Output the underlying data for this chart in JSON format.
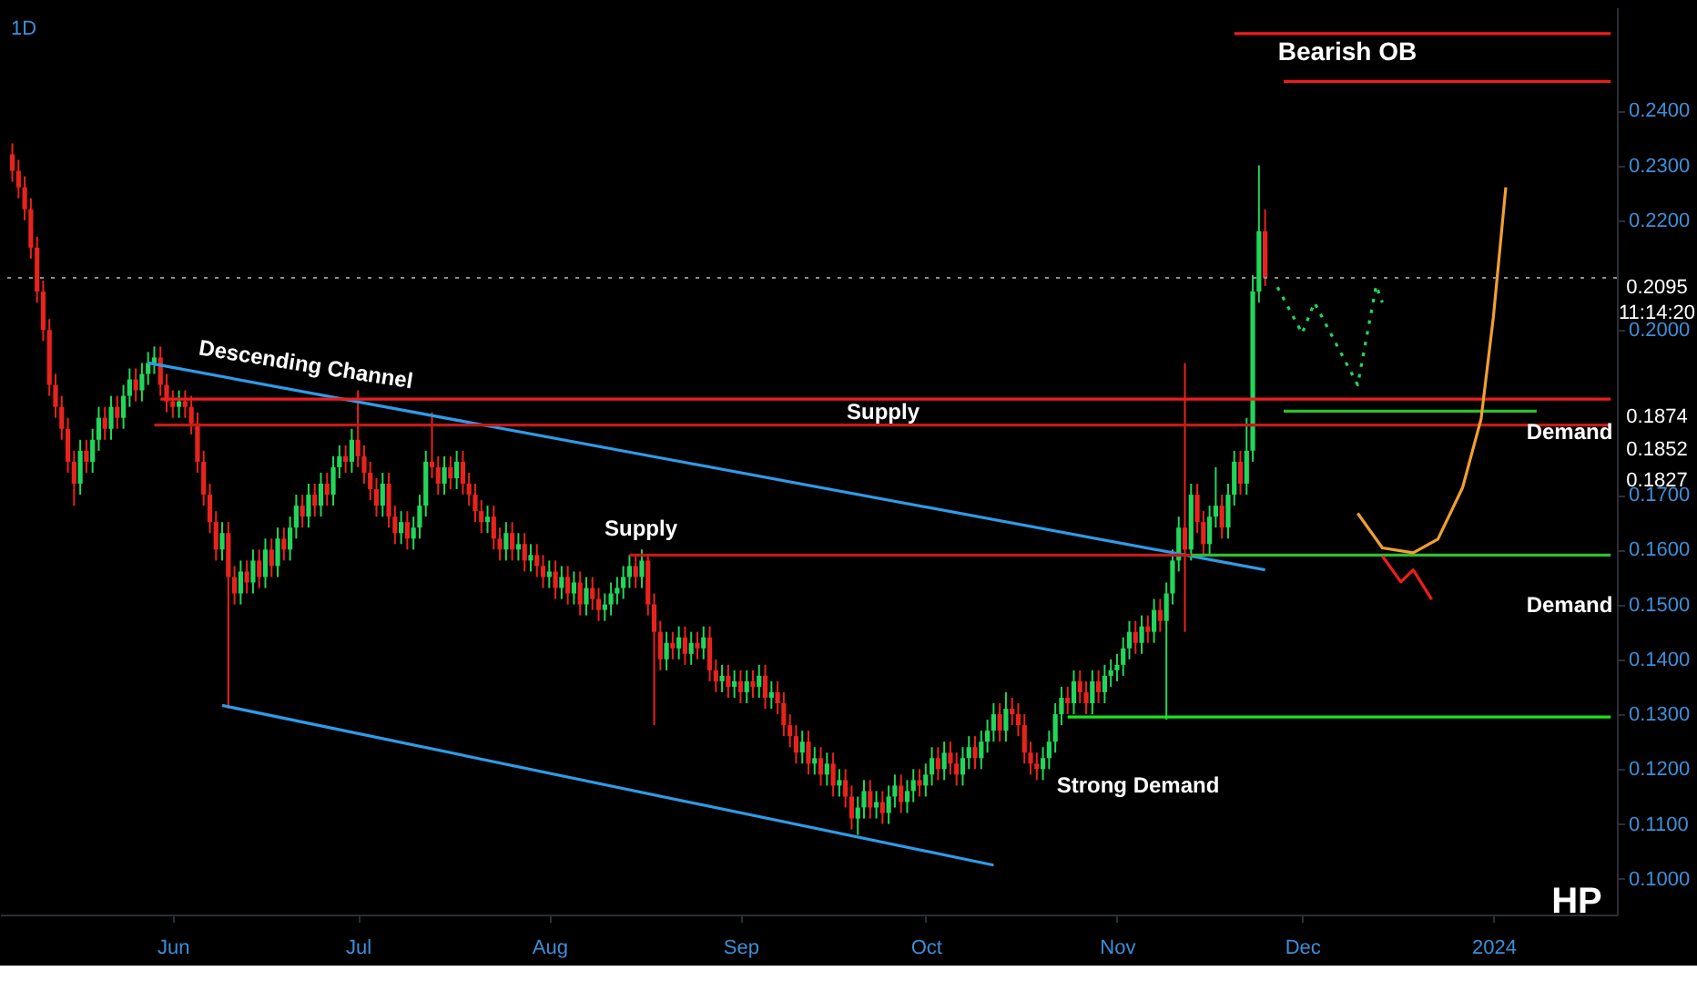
{
  "chart_data": {
    "type": "candlestick",
    "title": "1D",
    "x": [
      "2023-05-06",
      "2023-05-07",
      "2023-05-08",
      "2023-05-09",
      "2023-05-10",
      "2023-05-11",
      "2023-05-12",
      "2023-05-13",
      "2023-05-14",
      "2023-05-15",
      "2023-05-16",
      "2023-05-17",
      "2023-05-18",
      "2023-05-19",
      "2023-05-20",
      "2023-05-21",
      "2023-05-22",
      "2023-05-23",
      "2023-05-24",
      "2023-05-25",
      "2023-05-26",
      "2023-05-27",
      "2023-05-28",
      "2023-05-29",
      "2023-05-30",
      "2023-05-31",
      "2023-06-01",
      "2023-06-02",
      "2023-06-03",
      "2023-06-04",
      "2023-06-05",
      "2023-06-06",
      "2023-06-07",
      "2023-06-08",
      "2023-06-09",
      "2023-06-10",
      "2023-06-11",
      "2023-06-12",
      "2023-06-13",
      "2023-06-14",
      "2023-06-15",
      "2023-06-16",
      "2023-06-17",
      "2023-06-18",
      "2023-06-19",
      "2023-06-20",
      "2023-06-21",
      "2023-06-22",
      "2023-06-23",
      "2023-06-24",
      "2023-06-25",
      "2023-06-26",
      "2023-06-27",
      "2023-06-28",
      "2023-06-29",
      "2023-06-30",
      "2023-07-01",
      "2023-07-02",
      "2023-07-03",
      "2023-07-04",
      "2023-07-05",
      "2023-07-06",
      "2023-07-07",
      "2023-07-08",
      "2023-07-09",
      "2023-07-10",
      "2023-07-11",
      "2023-07-12",
      "2023-07-13",
      "2023-07-14",
      "2023-07-15",
      "2023-07-16",
      "2023-07-17",
      "2023-07-18",
      "2023-07-19",
      "2023-07-20",
      "2023-07-21",
      "2023-07-22",
      "2023-07-23",
      "2023-07-24",
      "2023-07-25",
      "2023-07-26",
      "2023-07-27",
      "2023-07-28",
      "2023-07-29",
      "2023-07-30",
      "2023-07-31",
      "2023-08-01",
      "2023-08-02",
      "2023-08-03",
      "2023-08-04",
      "2023-08-05",
      "2023-08-06",
      "2023-08-07",
      "2023-08-08",
      "2023-08-09",
      "2023-08-10",
      "2023-08-11",
      "2023-08-12",
      "2023-08-13",
      "2023-08-14",
      "2023-08-15",
      "2023-08-16",
      "2023-08-17",
      "2023-08-18",
      "2023-08-19",
      "2023-08-20",
      "2023-08-21",
      "2023-08-22",
      "2023-08-23",
      "2023-08-24",
      "2023-08-25",
      "2023-08-26",
      "2023-08-27",
      "2023-08-28",
      "2023-08-29",
      "2023-08-30",
      "2023-08-31",
      "2023-09-01",
      "2023-09-02",
      "2023-09-03",
      "2023-09-04",
      "2023-09-05",
      "2023-09-06",
      "2023-09-07",
      "2023-09-08",
      "2023-09-09",
      "2023-09-10",
      "2023-09-11",
      "2023-09-12",
      "2023-09-13",
      "2023-09-14",
      "2023-09-15",
      "2023-09-16",
      "2023-09-17",
      "2023-09-18",
      "2023-09-19",
      "2023-09-20",
      "2023-09-21",
      "2023-09-22",
      "2023-09-23",
      "2023-09-24",
      "2023-09-25",
      "2023-09-26",
      "2023-09-27",
      "2023-09-28",
      "2023-09-29",
      "2023-09-30",
      "2023-10-01",
      "2023-10-02",
      "2023-10-03",
      "2023-10-04",
      "2023-10-05",
      "2023-10-06",
      "2023-10-07",
      "2023-10-08",
      "2023-10-09",
      "2023-10-10",
      "2023-10-11",
      "2023-10-12",
      "2023-10-13",
      "2023-10-14",
      "2023-10-15",
      "2023-10-16",
      "2023-10-17",
      "2023-10-18",
      "2023-10-19",
      "2023-10-20",
      "2023-10-21",
      "2023-10-22",
      "2023-10-23",
      "2023-10-24",
      "2023-10-25",
      "2023-10-26",
      "2023-10-27",
      "2023-10-28",
      "2023-10-29",
      "2023-10-30",
      "2023-10-31",
      "2023-11-01",
      "2023-11-02",
      "2023-11-03",
      "2023-11-04",
      "2023-11-05",
      "2023-11-06",
      "2023-11-07",
      "2023-11-08",
      "2023-11-09",
      "2023-11-10",
      "2023-11-11",
      "2023-11-12",
      "2023-11-13",
      "2023-11-14",
      "2023-11-15",
      "2023-11-16",
      "2023-11-17",
      "2023-11-18",
      "2023-11-19",
      "2023-11-20",
      "2023-11-21",
      "2023-11-22",
      "2023-11-23",
      "2023-11-24",
      "2023-11-25"
    ],
    "ohlc": [
      [
        0.232,
        0.234,
        0.227,
        0.229
      ],
      [
        0.229,
        0.231,
        0.224,
        0.226
      ],
      [
        0.226,
        0.228,
        0.22,
        0.222
      ],
      [
        0.222,
        0.224,
        0.213,
        0.215
      ],
      [
        0.215,
        0.217,
        0.205,
        0.207
      ],
      [
        0.207,
        0.209,
        0.198,
        0.2
      ],
      [
        0.2,
        0.202,
        0.188,
        0.19
      ],
      [
        0.19,
        0.192,
        0.184,
        0.186
      ],
      [
        0.186,
        0.188,
        0.18,
        0.182
      ],
      [
        0.182,
        0.184,
        0.174,
        0.176
      ],
      [
        0.176,
        0.178,
        0.168,
        0.172
      ],
      [
        0.172,
        0.18,
        0.17,
        0.178
      ],
      [
        0.178,
        0.18,
        0.174,
        0.176
      ],
      [
        0.176,
        0.182,
        0.174,
        0.18
      ],
      [
        0.18,
        0.186,
        0.178,
        0.184
      ],
      [
        0.184,
        0.186,
        0.18,
        0.182
      ],
      [
        0.182,
        0.188,
        0.18,
        0.186
      ],
      [
        0.186,
        0.188,
        0.182,
        0.184
      ],
      [
        0.184,
        0.19,
        0.182,
        0.188
      ],
      [
        0.188,
        0.193,
        0.186,
        0.191
      ],
      [
        0.191,
        0.193,
        0.187,
        0.189
      ],
      [
        0.189,
        0.194,
        0.187,
        0.192
      ],
      [
        0.192,
        0.196,
        0.19,
        0.194
      ],
      [
        0.194,
        0.197,
        0.192,
        0.195
      ],
      [
        0.195,
        0.197,
        0.188,
        0.19
      ],
      [
        0.19,
        0.192,
        0.185,
        0.187
      ],
      [
        0.187,
        0.189,
        0.184,
        0.186
      ],
      [
        0.186,
        0.189,
        0.184,
        0.187
      ],
      [
        0.187,
        0.189,
        0.184,
        0.186
      ],
      [
        0.186,
        0.188,
        0.181,
        0.183
      ],
      [
        0.183,
        0.185,
        0.174,
        0.176
      ],
      [
        0.176,
        0.178,
        0.168,
        0.17
      ],
      [
        0.17,
        0.172,
        0.163,
        0.165
      ],
      [
        0.165,
        0.167,
        0.158,
        0.16
      ],
      [
        0.16,
        0.165,
        0.158,
        0.163
      ],
      [
        0.163,
        0.165,
        0.131,
        0.155
      ],
      [
        0.155,
        0.157,
        0.15,
        0.152
      ],
      [
        0.152,
        0.158,
        0.15,
        0.156
      ],
      [
        0.156,
        0.158,
        0.152,
        0.154
      ],
      [
        0.154,
        0.16,
        0.152,
        0.158
      ],
      [
        0.158,
        0.16,
        0.153,
        0.155
      ],
      [
        0.155,
        0.162,
        0.153,
        0.16
      ],
      [
        0.16,
        0.162,
        0.155,
        0.157
      ],
      [
        0.157,
        0.164,
        0.155,
        0.162
      ],
      [
        0.162,
        0.164,
        0.158,
        0.16
      ],
      [
        0.16,
        0.166,
        0.158,
        0.164
      ],
      [
        0.164,
        0.17,
        0.162,
        0.168
      ],
      [
        0.168,
        0.17,
        0.164,
        0.166
      ],
      [
        0.166,
        0.172,
        0.164,
        0.17
      ],
      [
        0.17,
        0.172,
        0.166,
        0.168
      ],
      [
        0.168,
        0.174,
        0.166,
        0.172
      ],
      [
        0.172,
        0.174,
        0.168,
        0.17
      ],
      [
        0.17,
        0.177,
        0.168,
        0.175
      ],
      [
        0.175,
        0.179,
        0.173,
        0.177
      ],
      [
        0.177,
        0.179,
        0.174,
        0.176
      ],
      [
        0.176,
        0.182,
        0.174,
        0.18
      ],
      [
        0.18,
        0.189,
        0.175,
        0.177
      ],
      [
        0.177,
        0.179,
        0.172,
        0.174
      ],
      [
        0.174,
        0.176,
        0.169,
        0.171
      ],
      [
        0.171,
        0.173,
        0.166,
        0.168
      ],
      [
        0.168,
        0.174,
        0.166,
        0.172
      ],
      [
        0.172,
        0.174,
        0.164,
        0.166
      ],
      [
        0.166,
        0.168,
        0.161,
        0.163
      ],
      [
        0.163,
        0.167,
        0.161,
        0.165
      ],
      [
        0.165,
        0.167,
        0.16,
        0.162
      ],
      [
        0.162,
        0.166,
        0.16,
        0.164
      ],
      [
        0.164,
        0.17,
        0.162,
        0.168
      ],
      [
        0.168,
        0.178,
        0.166,
        0.176
      ],
      [
        0.176,
        0.185,
        0.173,
        0.175
      ],
      [
        0.175,
        0.177,
        0.17,
        0.172
      ],
      [
        0.172,
        0.177,
        0.17,
        0.175
      ],
      [
        0.175,
        0.177,
        0.171,
        0.173
      ],
      [
        0.173,
        0.178,
        0.171,
        0.176
      ],
      [
        0.176,
        0.178,
        0.17,
        0.172
      ],
      [
        0.172,
        0.174,
        0.168,
        0.17
      ],
      [
        0.17,
        0.172,
        0.165,
        0.167
      ],
      [
        0.167,
        0.169,
        0.163,
        0.165
      ],
      [
        0.165,
        0.168,
        0.163,
        0.166
      ],
      [
        0.166,
        0.168,
        0.16,
        0.162
      ],
      [
        0.162,
        0.164,
        0.158,
        0.16
      ],
      [
        0.16,
        0.165,
        0.158,
        0.163
      ],
      [
        0.163,
        0.165,
        0.158,
        0.16
      ],
      [
        0.16,
        0.163,
        0.158,
        0.161
      ],
      [
        0.161,
        0.163,
        0.156,
        0.158
      ],
      [
        0.158,
        0.161,
        0.156,
        0.159
      ],
      [
        0.159,
        0.161,
        0.155,
        0.157
      ],
      [
        0.157,
        0.159,
        0.153,
        0.155
      ],
      [
        0.155,
        0.158,
        0.153,
        0.156
      ],
      [
        0.156,
        0.158,
        0.151,
        0.153
      ],
      [
        0.153,
        0.157,
        0.151,
        0.155
      ],
      [
        0.155,
        0.157,
        0.15,
        0.152
      ],
      [
        0.152,
        0.156,
        0.15,
        0.154
      ],
      [
        0.154,
        0.156,
        0.148,
        0.15
      ],
      [
        0.15,
        0.155,
        0.148,
        0.153
      ],
      [
        0.153,
        0.155,
        0.149,
        0.151
      ],
      [
        0.151,
        0.153,
        0.147,
        0.149
      ],
      [
        0.149,
        0.152,
        0.147,
        0.15
      ],
      [
        0.15,
        0.154,
        0.148,
        0.152
      ],
      [
        0.152,
        0.155,
        0.15,
        0.153
      ],
      [
        0.153,
        0.157,
        0.151,
        0.155
      ],
      [
        0.155,
        0.159,
        0.153,
        0.157
      ],
      [
        0.157,
        0.159,
        0.153,
        0.155
      ],
      [
        0.155,
        0.16,
        0.153,
        0.158
      ],
      [
        0.158,
        0.159,
        0.148,
        0.15
      ],
      [
        0.15,
        0.152,
        0.128,
        0.145
      ],
      [
        0.145,
        0.147,
        0.138,
        0.14
      ],
      [
        0.14,
        0.145,
        0.138,
        0.143
      ],
      [
        0.143,
        0.145,
        0.14,
        0.142
      ],
      [
        0.142,
        0.146,
        0.14,
        0.144
      ],
      [
        0.144,
        0.146,
        0.139,
        0.141
      ],
      [
        0.141,
        0.145,
        0.139,
        0.143
      ],
      [
        0.143,
        0.145,
        0.14,
        0.142
      ],
      [
        0.142,
        0.146,
        0.14,
        0.144
      ],
      [
        0.144,
        0.146,
        0.136,
        0.138
      ],
      [
        0.138,
        0.14,
        0.134,
        0.136
      ],
      [
        0.136,
        0.139,
        0.134,
        0.137
      ],
      [
        0.137,
        0.139,
        0.133,
        0.135
      ],
      [
        0.135,
        0.138,
        0.133,
        0.136
      ],
      [
        0.136,
        0.138,
        0.132,
        0.134
      ],
      [
        0.134,
        0.138,
        0.132,
        0.136
      ],
      [
        0.136,
        0.138,
        0.133,
        0.135
      ],
      [
        0.135,
        0.139,
        0.133,
        0.137
      ],
      [
        0.137,
        0.139,
        0.131,
        0.133
      ],
      [
        0.133,
        0.136,
        0.131,
        0.134
      ],
      [
        0.134,
        0.136,
        0.13,
        0.132
      ],
      [
        0.132,
        0.134,
        0.126,
        0.128
      ],
      [
        0.128,
        0.13,
        0.124,
        0.126
      ],
      [
        0.126,
        0.128,
        0.121,
        0.123
      ],
      [
        0.123,
        0.127,
        0.121,
        0.125
      ],
      [
        0.125,
        0.127,
        0.119,
        0.121
      ],
      [
        0.121,
        0.124,
        0.119,
        0.122
      ],
      [
        0.122,
        0.124,
        0.117,
        0.119
      ],
      [
        0.119,
        0.123,
        0.117,
        0.121
      ],
      [
        0.121,
        0.123,
        0.115,
        0.117
      ],
      [
        0.117,
        0.12,
        0.115,
        0.118
      ],
      [
        0.118,
        0.12,
        0.113,
        0.115
      ],
      [
        0.115,
        0.117,
        0.109,
        0.111
      ],
      [
        0.111,
        0.115,
        0.108,
        0.113
      ],
      [
        0.113,
        0.118,
        0.111,
        0.116
      ],
      [
        0.116,
        0.118,
        0.111,
        0.113
      ],
      [
        0.113,
        0.116,
        0.111,
        0.114
      ],
      [
        0.114,
        0.116,
        0.11,
        0.112
      ],
      [
        0.112,
        0.117,
        0.11,
        0.115
      ],
      [
        0.115,
        0.119,
        0.113,
        0.117
      ],
      [
        0.117,
        0.119,
        0.112,
        0.114
      ],
      [
        0.114,
        0.118,
        0.112,
        0.116
      ],
      [
        0.116,
        0.12,
        0.114,
        0.118
      ],
      [
        0.118,
        0.12,
        0.115,
        0.117
      ],
      [
        0.117,
        0.121,
        0.115,
        0.119
      ],
      [
        0.119,
        0.124,
        0.117,
        0.122
      ],
      [
        0.122,
        0.124,
        0.118,
        0.12
      ],
      [
        0.12,
        0.125,
        0.118,
        0.123
      ],
      [
        0.123,
        0.125,
        0.119,
        0.121
      ],
      [
        0.121,
        0.123,
        0.117,
        0.119
      ],
      [
        0.119,
        0.124,
        0.117,
        0.122
      ],
      [
        0.122,
        0.126,
        0.12,
        0.124
      ],
      [
        0.124,
        0.126,
        0.12,
        0.122
      ],
      [
        0.122,
        0.127,
        0.12,
        0.125
      ],
      [
        0.125,
        0.129,
        0.123,
        0.127
      ],
      [
        0.127,
        0.132,
        0.125,
        0.13
      ],
      [
        0.13,
        0.132,
        0.125,
        0.127
      ],
      [
        0.127,
        0.134,
        0.125,
        0.131
      ],
      [
        0.131,
        0.133,
        0.128,
        0.13
      ],
      [
        0.13,
        0.132,
        0.126,
        0.128
      ],
      [
        0.128,
        0.13,
        0.121,
        0.123
      ],
      [
        0.123,
        0.125,
        0.119,
        0.121
      ],
      [
        0.121,
        0.123,
        0.118,
        0.12
      ],
      [
        0.12,
        0.124,
        0.118,
        0.122
      ],
      [
        0.122,
        0.127,
        0.12,
        0.125
      ],
      [
        0.125,
        0.132,
        0.123,
        0.13
      ],
      [
        0.13,
        0.135,
        0.128,
        0.133
      ],
      [
        0.133,
        0.135,
        0.13,
        0.132
      ],
      [
        0.132,
        0.138,
        0.13,
        0.136
      ],
      [
        0.136,
        0.138,
        0.132,
        0.134
      ],
      [
        0.134,
        0.136,
        0.13,
        0.132
      ],
      [
        0.132,
        0.138,
        0.13,
        0.136
      ],
      [
        0.136,
        0.138,
        0.132,
        0.134
      ],
      [
        0.134,
        0.139,
        0.132,
        0.137
      ],
      [
        0.137,
        0.14,
        0.135,
        0.138
      ],
      [
        0.138,
        0.141,
        0.136,
        0.139
      ],
      [
        0.139,
        0.144,
        0.137,
        0.142
      ],
      [
        0.142,
        0.147,
        0.14,
        0.145
      ],
      [
        0.145,
        0.147,
        0.141,
        0.143
      ],
      [
        0.143,
        0.148,
        0.141,
        0.146
      ],
      [
        0.146,
        0.148,
        0.143,
        0.145
      ],
      [
        0.145,
        0.151,
        0.143,
        0.149
      ],
      [
        0.149,
        0.151,
        0.145,
        0.147
      ],
      [
        0.147,
        0.154,
        0.129,
        0.152
      ],
      [
        0.152,
        0.16,
        0.15,
        0.158
      ],
      [
        0.158,
        0.166,
        0.156,
        0.164
      ],
      [
        0.164,
        0.194,
        0.145,
        0.16
      ],
      [
        0.16,
        0.172,
        0.158,
        0.17
      ],
      [
        0.17,
        0.172,
        0.163,
        0.165
      ],
      [
        0.165,
        0.167,
        0.159,
        0.161
      ],
      [
        0.161,
        0.168,
        0.159,
        0.166
      ],
      [
        0.166,
        0.175,
        0.164,
        0.168
      ],
      [
        0.168,
        0.17,
        0.162,
        0.164
      ],
      [
        0.164,
        0.172,
        0.162,
        0.17
      ],
      [
        0.17,
        0.178,
        0.168,
        0.176
      ],
      [
        0.176,
        0.178,
        0.17,
        0.172
      ],
      [
        0.172,
        0.184,
        0.17,
        0.178
      ],
      [
        0.178,
        0.21,
        0.176,
        0.207
      ],
      [
        0.207,
        0.23,
        0.205,
        0.218
      ],
      [
        0.218,
        0.222,
        0.208,
        0.2095
      ]
    ],
    "colors": [
      "#e8231c",
      "#e8231c",
      "#e8231c",
      "#e8231c",
      "#e8231c",
      "#e8231c",
      "#e8231c",
      "#e8231c",
      "#e8231c",
      "#e8231c",
      "#e8231c",
      "#22d65a",
      "#e8231c",
      "#22d65a",
      "#22d65a",
      "#e8231c",
      "#22d65a",
      "#e8231c",
      "#22d65a",
      "#22d65a",
      "#e8231c",
      "#22d65a",
      "#22d65a",
      "#22d65a",
      "#e8231c",
      "#e8231c",
      "#e8231c",
      "#22d65a",
      "#e8231c",
      "#e8231c",
      "#e8231c",
      "#e8231c",
      "#e8231c",
      "#e8231c",
      "#22d65a",
      "#e8231c",
      "#e8231c",
      "#22d65a",
      "#e8231c",
      "#22d65a",
      "#e8231c",
      "#22d65a",
      "#e8231c",
      "#22d65a",
      "#e8231c",
      "#22d65a",
      "#22d65a",
      "#e8231c",
      "#22d65a",
      "#e8231c",
      "#22d65a",
      "#e8231c",
      "#22d65a",
      "#22d65a",
      "#e8231c",
      "#22d65a",
      "#e8231c",
      "#e8231c",
      "#e8231c",
      "#e8231c",
      "#22d65a",
      "#e8231c",
      "#e8231c",
      "#22d65a",
      "#e8231c",
      "#22d65a",
      "#22d65a",
      "#22d65a",
      "#e8231c",
      "#e8231c",
      "#22d65a",
      "#e8231c",
      "#22d65a",
      "#e8231c",
      "#e8231c",
      "#e8231c",
      "#e8231c",
      "#22d65a",
      "#e8231c",
      "#e8231c",
      "#22d65a",
      "#e8231c",
      "#22d65a",
      "#e8231c",
      "#22d65a",
      "#e8231c",
      "#e8231c",
      "#22d65a",
      "#e8231c",
      "#22d65a",
      "#e8231c",
      "#22d65a",
      "#e8231c",
      "#22d65a",
      "#e8231c",
      "#e8231c",
      "#22d65a",
      "#22d65a",
      "#22d65a",
      "#22d65a",
      "#22d65a",
      "#e8231c",
      "#22d65a",
      "#e8231c",
      "#e8231c",
      "#e8231c",
      "#22d65a",
      "#e8231c",
      "#22d65a",
      "#e8231c",
      "#22d65a",
      "#e8231c",
      "#22d65a",
      "#e8231c",
      "#e8231c",
      "#22d65a",
      "#e8231c",
      "#22d65a",
      "#e8231c",
      "#22d65a",
      "#e8231c",
      "#22d65a",
      "#e8231c",
      "#22d65a",
      "#e8231c",
      "#e8231c",
      "#e8231c",
      "#e8231c",
      "#22d65a",
      "#e8231c",
      "#22d65a",
      "#e8231c",
      "#22d65a",
      "#e8231c",
      "#22d65a",
      "#e8231c",
      "#e8231c",
      "#22d65a",
      "#22d65a",
      "#e8231c",
      "#22d65a",
      "#e8231c",
      "#22d65a",
      "#22d65a",
      "#e8231c",
      "#22d65a",
      "#22d65a",
      "#e8231c",
      "#22d65a",
      "#22d65a",
      "#e8231c",
      "#22d65a",
      "#e8231c",
      "#e8231c",
      "#22d65a",
      "#22d65a",
      "#e8231c",
      "#22d65a",
      "#22d65a",
      "#22d65a",
      "#e8231c",
      "#22d65a",
      "#e8231c",
      "#e8231c",
      "#e8231c",
      "#e8231c",
      "#e8231c",
      "#22d65a",
      "#22d65a",
      "#22d65a",
      "#22d65a",
      "#e8231c",
      "#22d65a",
      "#e8231c",
      "#e8231c",
      "#22d65a",
      "#e8231c",
      "#22d65a",
      "#22d65a",
      "#22d65a",
      "#22d65a",
      "#22d65a",
      "#e8231c",
      "#22d65a",
      "#e8231c",
      "#22d65a",
      "#e8231c",
      "#22d65a",
      "#22d65a",
      "#22d65a",
      "#e8231c",
      "#22d65a",
      "#e8231c",
      "#e8231c",
      "#22d65a",
      "#22d65a",
      "#e8231c",
      "#22d65a",
      "#22d65a",
      "#e8231c",
      "#22d65a",
      "#22d65a",
      "#22d65a",
      "#e8231c"
    ],
    "series": [
      {
        "type": "line",
        "color": "#2f9be8",
        "x": [
          "2023-05-28",
          "2023-11-25"
        ],
        "values": [
          0.194,
          0.1563
        ]
      },
      {
        "type": "line",
        "color": "#2f9be8",
        "x": [
          "2023-06-09",
          "2023-10-12"
        ],
        "values": [
          0.1316,
          0.1025
        ]
      },
      {
        "type": "line",
        "color": "#f01c1c",
        "x": [
          "2023-05-30",
          "2024-01-20"
        ],
        "values": [
          0.1874,
          0.1874
        ]
      },
      {
        "type": "line",
        "color": "#c41a1a",
        "x": [
          "2023-05-29",
          "2024-01-20"
        ],
        "values": [
          0.1827,
          0.1827
        ]
      },
      {
        "type": "line",
        "color": "#c41a1a",
        "x": [
          "2023-08-14",
          "2023-11-13"
        ],
        "values": [
          0.159,
          0.159
        ]
      },
      {
        "type": "line",
        "color": "#2fbf2f",
        "x": [
          "2023-11-13",
          "2024-01-20"
        ],
        "values": [
          0.159,
          0.159
        ]
      },
      {
        "type": "line",
        "color": "#2fbf2f",
        "x": [
          "2023-11-28",
          "2024-01-08"
        ],
        "values": [
          0.1852,
          0.1852
        ]
      },
      {
        "type": "line",
        "color": "#19e619",
        "x": [
          "2023-10-24",
          "2024-01-20"
        ],
        "values": [
          0.1295,
          0.1295
        ]
      },
      {
        "type": "line",
        "color": "#f01c1c",
        "x": [
          "2023-11-20",
          "2024-01-20"
        ],
        "values": [
          0.254,
          0.254
        ]
      },
      {
        "type": "line",
        "color": "#f01c1c",
        "x": [
          "2023-11-28",
          "2024-01-20"
        ],
        "values": [
          0.2453,
          0.2453
        ]
      },
      {
        "type": "line",
        "color": "#22d65a",
        "line_style": "dotted",
        "x": [
          "2023-11-27",
          "2023-12-01",
          "2023-12-03",
          "2023-12-10",
          "2023-12-13",
          "2023-12-14"
        ],
        "values": [
          0.2078,
          0.1994,
          0.205,
          0.19,
          0.2081,
          0.205
        ]
      },
      {
        "type": "line",
        "color": "#f0a030",
        "x": [
          "2023-12-10",
          "2023-12-14",
          "2023-12-19",
          "2023-12-23",
          "2023-12-27",
          "2023-12-30",
          "2024-01-01",
          "2024-01-03"
        ],
        "values": [
          0.1666,
          0.1603,
          0.1594,
          0.1619,
          0.1713,
          0.1838,
          0.2025,
          0.226
        ]
      },
      {
        "type": "line",
        "color": "#f01c1c",
        "x": [
          "2023-12-14",
          "2023-12-17",
          "2023-12-19",
          "2023-12-22"
        ],
        "values": [
          0.1588,
          0.1541,
          0.1563,
          0.1509
        ]
      }
    ],
    "ref_lines": [
      {
        "axis": "y",
        "value": 0.2095,
        "color": "#8a8f98",
        "line_style": "dotted"
      }
    ],
    "annotations": [
      "Descending Channel",
      "Supply",
      "Supply",
      "Demand",
      "Demand",
      "Strong Demand",
      "Bearish OB",
      "0.2095",
      "11:14:20",
      "0.1874",
      "0.1852",
      "0.1827",
      "HP"
    ],
    "xlim": [
      "2023-05-04",
      "2024-01-21"
    ],
    "xticks": [
      {
        "value": "2023-06-01",
        "label": "Jun"
      },
      {
        "value": "2023-07-01",
        "label": "Jul"
      },
      {
        "value": "2023-08-01",
        "label": "Aug"
      },
      {
        "value": "2023-09-01",
        "label": "Sep"
      },
      {
        "value": "2023-10-01",
        "label": "Oct"
      },
      {
        "value": "2023-11-01",
        "label": "Nov"
      },
      {
        "value": "2023-12-01",
        "label": "Dec"
      },
      {
        "value": "2024-01-01",
        "label": "2024"
      }
    ],
    "ylim": [
      0.0935,
      0.2588
    ],
    "yticks": [
      {
        "value": 0.1,
        "label": "0.1000"
      },
      {
        "value": 0.11,
        "label": "0.1100"
      },
      {
        "value": 0.12,
        "label": "0.1200"
      },
      {
        "value": 0.13,
        "label": "0.1300"
      },
      {
        "value": 0.14,
        "label": "0.1400"
      },
      {
        "value": 0.15,
        "label": "0.1500"
      },
      {
        "value": 0.16,
        "label": "0.1600"
      },
      {
        "value": 0.17,
        "label": "0.1700"
      },
      {
        "value": 0.2,
        "label": "0.2000"
      },
      {
        "value": 0.22,
        "label": "0.2200"
      },
      {
        "value": 0.23,
        "label": "0.2300"
      },
      {
        "value": 0.24,
        "label": "0.2400"
      }
    ],
    "grid": false
  }
}
